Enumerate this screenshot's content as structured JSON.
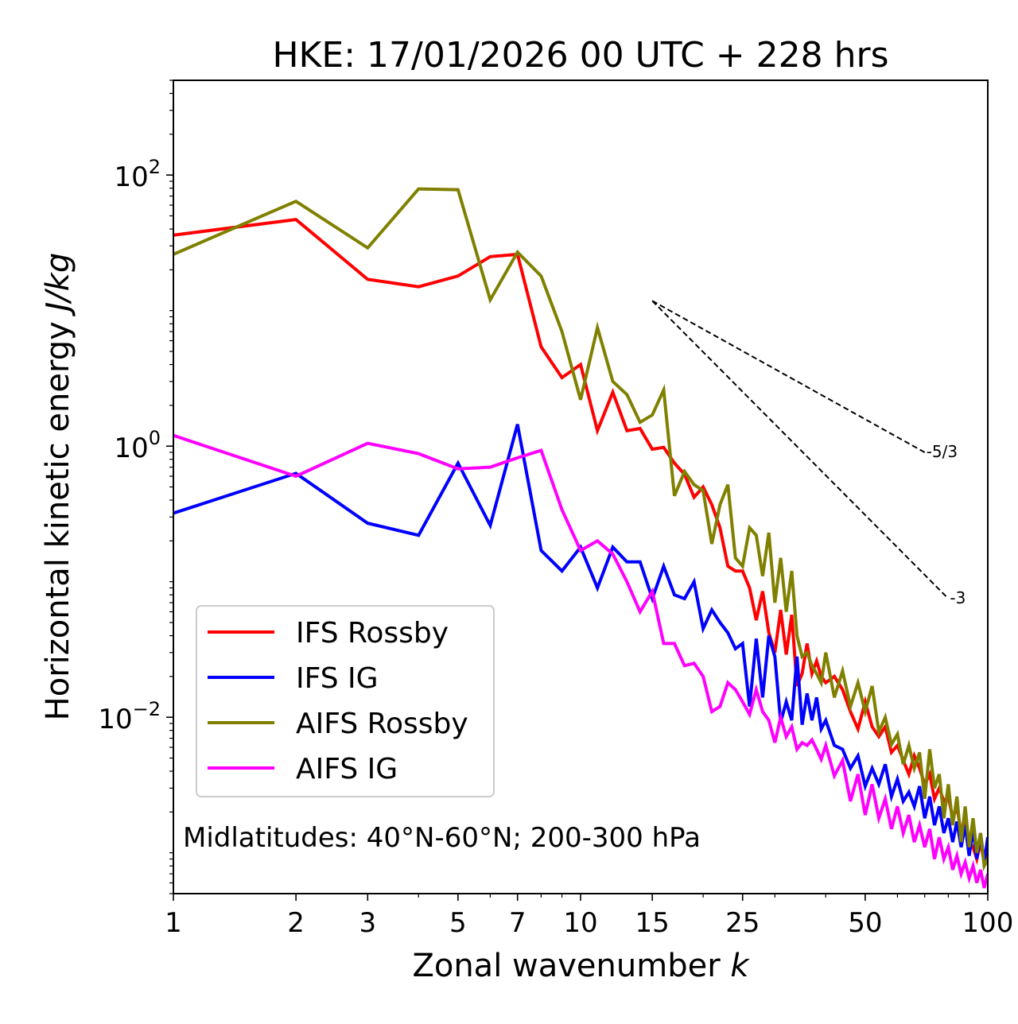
{
  "chart_data": {
    "type": "line",
    "title": "HKE: 17/01/2026 00 UTC + 228 hrs",
    "xlabel": "Zonal wavenumber",
    "xlabel_var": "k",
    "ylabel": "Horizontal kinetic energy",
    "ylabel_unit": "J/kg",
    "xscale": "log",
    "yscale": "log",
    "xlim": [
      1,
      100
    ],
    "ylim": [
      0.0005,
      500
    ],
    "x_ticks": [
      {
        "value": 1,
        "label": "1"
      },
      {
        "value": 2,
        "label": "2"
      },
      {
        "value": 3,
        "label": "3"
      },
      {
        "value": 5,
        "label": "5"
      },
      {
        "value": 7,
        "label": "7"
      },
      {
        "value": 10,
        "label": "10"
      },
      {
        "value": 15,
        "label": "15"
      },
      {
        "value": 25,
        "label": "25"
      },
      {
        "value": 50,
        "label": "50"
      },
      {
        "value": 100,
        "label": "100"
      }
    ],
    "y_ticks": [
      {
        "value": 100,
        "base": "10",
        "exp": "2"
      },
      {
        "value": 1,
        "base": "10",
        "exp": "0"
      },
      {
        "value": 0.01,
        "base": "10",
        "exp": "−2"
      }
    ],
    "annotation": "Midlatitudes: 40°N-60°N; 200-300 hPa",
    "legend_position": "lower-left",
    "reference_slopes": [
      {
        "label": "-5/3",
        "x_start": 15,
        "y_start": 11.8,
        "x_end": 70,
        "y_end": 0.9
      },
      {
        "label": "-3",
        "x_start": 15,
        "y_start": 11.8,
        "x_end": 80,
        "y_end": 0.075
      }
    ],
    "series": [
      {
        "name": "IFS Rossby",
        "color": "#ff0000",
        "x": [
          1,
          2,
          3,
          4,
          5,
          6,
          7,
          8,
          9,
          10,
          11,
          12,
          13,
          14,
          15,
          16,
          17,
          18,
          19,
          20,
          21,
          22,
          23,
          24,
          25,
          26,
          27,
          28,
          29,
          30,
          31,
          32,
          33,
          34,
          35,
          36,
          37,
          38,
          39,
          40,
          42,
          44,
          46,
          48,
          50,
          52,
          54,
          56,
          58,
          60,
          62,
          64,
          66,
          68,
          70,
          72,
          74,
          76,
          78,
          80,
          82,
          84,
          86,
          88,
          90,
          92,
          94,
          96,
          98,
          100
        ],
        "y": [
          36,
          47,
          17,
          15,
          18,
          25,
          26,
          5.4,
          3.2,
          4,
          1.3,
          2.5,
          1.3,
          1.35,
          0.95,
          0.98,
          0.75,
          0.62,
          0.42,
          0.5,
          0.37,
          0.25,
          0.13,
          0.12,
          0.12,
          0.09,
          0.052,
          0.085,
          0.042,
          0.03,
          0.062,
          0.029,
          0.057,
          0.017,
          0.021,
          0.035,
          0.021,
          0.026,
          0.02,
          0.018,
          0.02,
          0.016,
          0.011,
          0.0082,
          0.013,
          0.0085,
          0.0072,
          0.0085,
          0.0055,
          0.0062,
          0.0048,
          0.0038,
          0.0052,
          0.0042,
          0.0032,
          0.0038,
          0.0025,
          0.003,
          0.0024,
          0.0026,
          0.0018,
          0.0022,
          0.0014,
          0.0016,
          0.0012,
          0.0011,
          0.0009,
          0.0012,
          0.00085,
          0.0011
        ]
      },
      {
        "name": "IFS IG",
        "color": "#0000ff",
        "x": [
          1,
          2,
          3,
          4,
          5,
          6,
          7,
          8,
          9,
          10,
          11,
          12,
          13,
          14,
          15,
          16,
          17,
          18,
          19,
          20,
          21,
          22,
          23,
          24,
          25,
          26,
          27,
          28,
          29,
          30,
          31,
          32,
          33,
          34,
          35,
          36,
          37,
          38,
          39,
          40,
          42,
          44,
          46,
          48,
          50,
          52,
          54,
          56,
          58,
          60,
          62,
          64,
          66,
          68,
          70,
          72,
          74,
          76,
          78,
          80,
          82,
          84,
          86,
          88,
          90,
          92,
          94,
          96,
          98,
          100
        ],
        "y": [
          0.32,
          0.63,
          0.27,
          0.22,
          0.75,
          0.26,
          1.45,
          0.17,
          0.12,
          0.18,
          0.09,
          0.18,
          0.14,
          0.14,
          0.075,
          0.13,
          0.08,
          0.075,
          0.1,
          0.045,
          0.062,
          0.05,
          0.042,
          0.032,
          0.035,
          0.012,
          0.038,
          0.014,
          0.04,
          0.028,
          0.0092,
          0.013,
          0.0095,
          0.028,
          0.0088,
          0.015,
          0.0095,
          0.014,
          0.0082,
          0.0095,
          0.0062,
          0.0058,
          0.0042,
          0.0052,
          0.0031,
          0.0042,
          0.0032,
          0.0045,
          0.0026,
          0.0035,
          0.0024,
          0.0028,
          0.0022,
          0.0031,
          0.0018,
          0.0026,
          0.0016,
          0.0022,
          0.0014,
          0.0018,
          0.0012,
          0.0017,
          0.0011,
          0.0016,
          0.00095,
          0.0015,
          0.0009,
          0.0014,
          0.00085,
          0.0013
        ]
      },
      {
        "name": "AIFS Rossby",
        "color": "#808000",
        "x": [
          1,
          2,
          3,
          4,
          5,
          6,
          7,
          8,
          9,
          10,
          11,
          12,
          13,
          14,
          15,
          16,
          17,
          18,
          19,
          20,
          21,
          22,
          23,
          24,
          25,
          26,
          27,
          28,
          29,
          30,
          31,
          32,
          33,
          34,
          35,
          36,
          37,
          38,
          39,
          40,
          42,
          44,
          46,
          48,
          50,
          52,
          54,
          56,
          58,
          60,
          62,
          64,
          66,
          68,
          70,
          72,
          74,
          76,
          78,
          80,
          82,
          84,
          86,
          88,
          90,
          92,
          94,
          96,
          98,
          100
        ],
        "y": [
          26,
          64,
          29,
          79,
          78,
          12,
          27,
          18,
          7,
          2.2,
          7.5,
          3,
          2.4,
          1.5,
          1.7,
          2.6,
          0.43,
          0.65,
          0.52,
          0.47,
          0.19,
          0.37,
          0.52,
          0.15,
          0.13,
          0.25,
          0.22,
          0.11,
          0.23,
          0.07,
          0.15,
          0.06,
          0.12,
          0.04,
          0.028,
          0.03,
          0.024,
          0.021,
          0.018,
          0.03,
          0.014,
          0.022,
          0.012,
          0.018,
          0.011,
          0.017,
          0.0078,
          0.01,
          0.0063,
          0.0075,
          0.0045,
          0.0062,
          0.0042,
          0.0055,
          0.0025,
          0.0058,
          0.003,
          0.0038,
          0.0018,
          0.0032,
          0.0016,
          0.0026,
          0.0012,
          0.0022,
          0.0011,
          0.0018,
          0.001,
          0.0014,
          0.0008,
          0.0009
        ]
      },
      {
        "name": "AIFS IG",
        "color": "#ff00ff",
        "x": [
          1,
          2,
          3,
          4,
          5,
          6,
          7,
          8,
          9,
          10,
          11,
          12,
          13,
          14,
          15,
          16,
          17,
          18,
          19,
          20,
          21,
          22,
          23,
          24,
          25,
          26,
          27,
          28,
          29,
          30,
          31,
          32,
          33,
          34,
          35,
          36,
          37,
          38,
          39,
          40,
          42,
          44,
          46,
          48,
          50,
          52,
          54,
          56,
          58,
          60,
          62,
          64,
          66,
          68,
          70,
          72,
          74,
          76,
          78,
          80,
          82,
          84,
          86,
          88,
          90,
          92,
          94,
          96,
          98,
          100
        ],
        "y": [
          1.2,
          0.6,
          1.05,
          0.88,
          0.68,
          0.7,
          0.82,
          0.93,
          0.34,
          0.17,
          0.2,
          0.16,
          0.1,
          0.06,
          0.085,
          0.035,
          0.035,
          0.024,
          0.025,
          0.02,
          0.011,
          0.012,
          0.018,
          0.016,
          0.013,
          0.0105,
          0.016,
          0.011,
          0.0095,
          0.0065,
          0.01,
          0.0072,
          0.0085,
          0.0058,
          0.0065,
          0.0062,
          0.0068,
          0.0058,
          0.0049,
          0.0062,
          0.0037,
          0.0048,
          0.0024,
          0.0038,
          0.0019,
          0.0032,
          0.0018,
          0.0025,
          0.0015,
          0.0022,
          0.0014,
          0.0019,
          0.0012,
          0.0016,
          0.0011,
          0.0015,
          0.0009,
          0.0013,
          0.0009,
          0.0011,
          0.00075,
          0.00095,
          0.0007,
          0.00085,
          0.00065,
          0.0008,
          0.0006,
          0.00075,
          0.00055,
          0.0007
        ]
      }
    ]
  }
}
